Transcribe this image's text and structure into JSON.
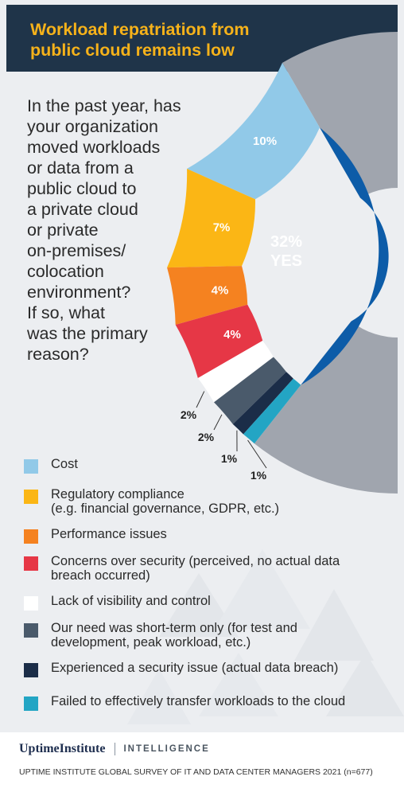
{
  "header": {
    "title_lines": [
      "Workload repatriation from",
      "public cloud remains low"
    ]
  },
  "question_lines": [
    "In the past year, has",
    "your organization",
    "moved workloads",
    "or data from a",
    "public cloud to",
    "a private cloud",
    "or private",
    "on-premises/",
    "colocation",
    "environment?",
    "If so, what",
    "was the primary",
    "reason?"
  ],
  "chart_data": {
    "type": "pie",
    "total_yes": {
      "value": 32,
      "label_line1": "32%",
      "label_line2": "YES"
    },
    "slices": [
      {
        "name": "Cost",
        "value": 10,
        "label": "10%",
        "color": "#91c9e8"
      },
      {
        "name": "Regulatory compliance (e.g. financial governance, GDPR, etc.)",
        "value": 7,
        "label": "7%",
        "color": "#fbb615"
      },
      {
        "name": "Performance issues",
        "value": 4,
        "label": "4%",
        "color": "#f58220"
      },
      {
        "name": "Concerns over security (perceived, no actual data breach occurred)",
        "value": 4,
        "label": "4%",
        "color": "#e63746"
      },
      {
        "name": "Lack of visibility and control",
        "value": 2,
        "label": "2%",
        "color": "#ffffff"
      },
      {
        "name": "Our need was short-term only (for test and development, peak workload, etc.)",
        "value": 2,
        "label": "2%",
        "color": "#4a5a6b"
      },
      {
        "name": "Experienced a security issue (actual data breach)",
        "value": 1,
        "label": "1%",
        "color": "#1b2d48"
      },
      {
        "name": "Failed to effectively transfer workloads to the cloud",
        "value": 1,
        "label": "1%",
        "color": "#23a5c4"
      }
    ],
    "remainder_color": "#a0a5ae",
    "yes_color": "#0d5ca8"
  },
  "legend": [
    {
      "lines": [
        "Cost"
      ],
      "color": "#91c9e8"
    },
    {
      "lines": [
        "Regulatory compliance",
        "(e.g. financial governance, GDPR, etc.)"
      ],
      "color": "#fbb615"
    },
    {
      "lines": [
        "Performance issues"
      ],
      "color": "#f58220"
    },
    {
      "lines": [
        "Concerns over security (perceived, no actual data",
        "breach occurred)"
      ],
      "color": "#e63746"
    },
    {
      "lines": [
        "Lack of visibility and control"
      ],
      "color": "#ffffff"
    },
    {
      "lines": [
        "Our need was short-term only (for test and",
        "development, peak workload, etc.)"
      ],
      "color": "#4a5a6b"
    },
    {
      "lines": [
        "Experienced a security issue (actual data breach)"
      ],
      "color": "#1b2d48"
    },
    {
      "lines": [
        "Failed to effectively transfer workloads to the cloud"
      ],
      "color": "#23a5c4"
    }
  ],
  "footer": {
    "logo_name": "UptimeInstitute",
    "logo_unit": "INTELLIGENCE",
    "source": "UPTIME INSTITUTE GLOBAL SURVEY OF IT AND DATA CENTER MANAGERS 2021 (n=677)"
  }
}
